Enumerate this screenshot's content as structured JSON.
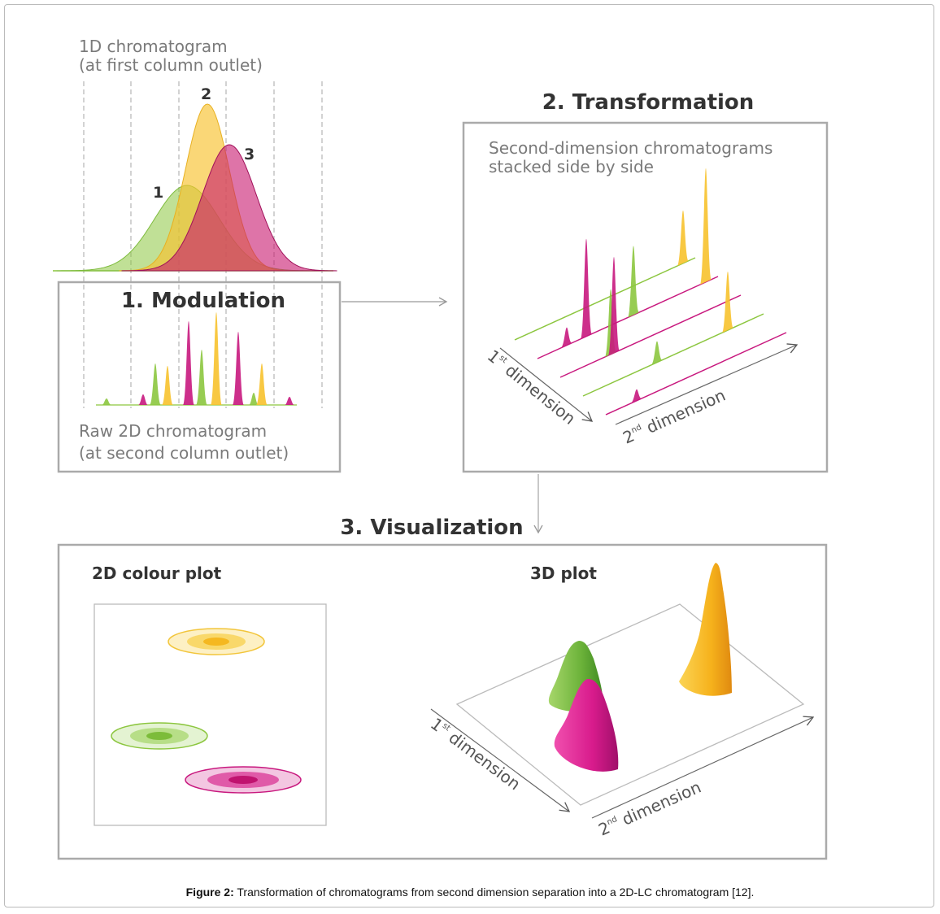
{
  "colors": {
    "green": "#8cc63f",
    "yellow": "#f7c22e",
    "pink": "#c8187e",
    "red": "#c83a5a",
    "box": "#aaaaaa",
    "subtitle": "#7a7a7a",
    "title": "#333333"
  },
  "panel1d": {
    "title_line1": "1D chromatogram",
    "title_line2": "(at first column outlet)",
    "peak_labels": [
      "1",
      "2",
      "3"
    ]
  },
  "modulation": {
    "title": "1. Modulation",
    "label_line1": "Raw 2D chromatogram",
    "label_line2": "(at second column outlet)"
  },
  "transformation": {
    "title": "2. Transformation",
    "subtitle_line1": "Second-dimension chromatograms",
    "subtitle_line2": "stacked side by side",
    "axis1": "1",
    "axis1_sup": "st",
    "axis1_rest": " dimension",
    "axis2": "2",
    "axis2_sup": "nd",
    "axis2_rest": " dimension"
  },
  "visualization": {
    "title": "3. Visualization",
    "plot2d_title": "2D colour plot",
    "plot3d_title": "3D plot",
    "axis1": "1",
    "axis1_sup": "st",
    "axis1_rest": " dimension",
    "axis2": "2",
    "axis2_sup": "nd",
    "axis2_rest": " dimension"
  },
  "caption": {
    "label": "Figure 2:",
    "text": " Transformation of chromatograms from second dimension separation into a 2D-LC chromatogram [12]."
  }
}
